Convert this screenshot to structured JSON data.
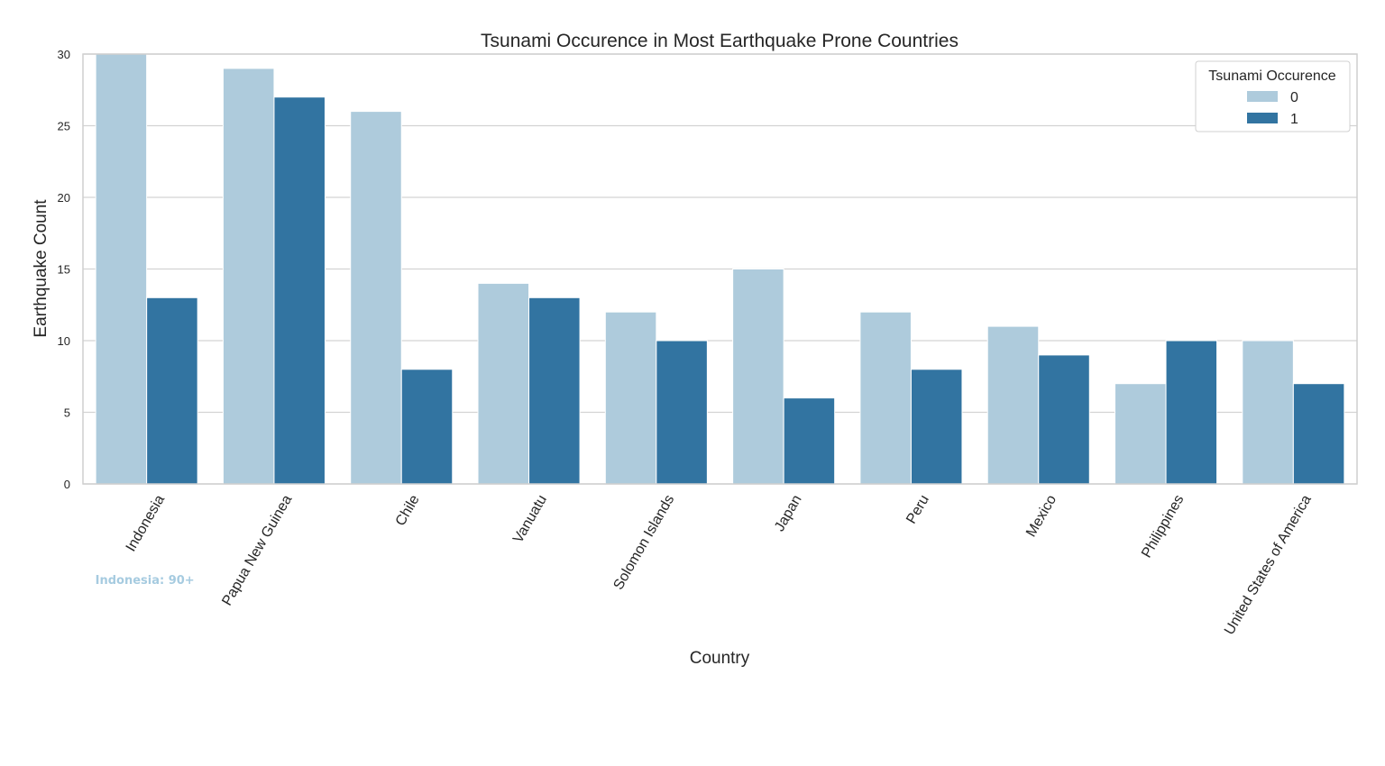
{
  "chart_data": {
    "type": "bar",
    "title": "Tsunami Occurence in Most Earthquake Prone Countries",
    "xlabel": "Country",
    "ylabel": "Earthquake Count",
    "ylim": [
      0,
      30
    ],
    "yticks": [
      0,
      5,
      10,
      15,
      20,
      25,
      30
    ],
    "grid": true,
    "legend": {
      "title": "Tsunami Occurence",
      "position": "top-right"
    },
    "categories": [
      "Indonesia",
      "Papua New Guinea",
      "Chile",
      "Vanuatu",
      "Solomon Islands",
      "Japan",
      "Peru",
      "Mexico",
      "Philippines",
      "United States of America"
    ],
    "series": [
      {
        "name": "0",
        "color": "#aecbdc",
        "values": [
          30,
          29,
          26,
          14,
          12,
          15,
          12,
          11,
          7,
          10
        ]
      },
      {
        "name": "1",
        "color": "#3274a1",
        "values": [
          13,
          27,
          8,
          13,
          10,
          6,
          8,
          9,
          10,
          7
        ]
      }
    ],
    "annotations": [
      {
        "text": "Indonesia: 90+",
        "category": "Indonesia",
        "color": "#a6cbe0"
      }
    ]
  }
}
